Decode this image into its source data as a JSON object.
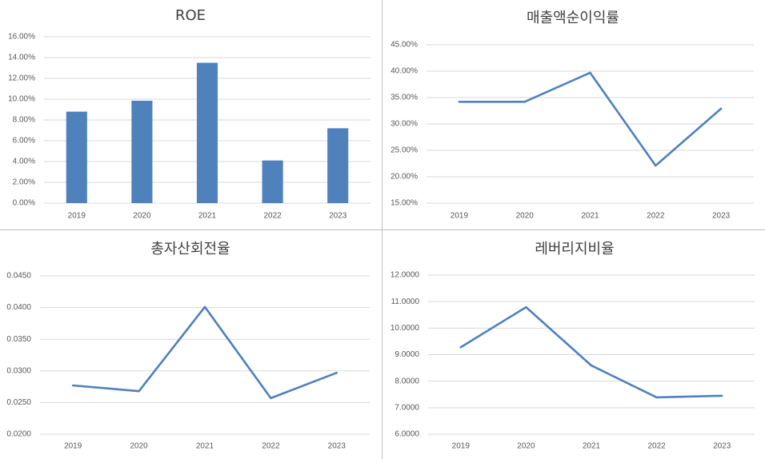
{
  "chart_data": [
    {
      "type": "bar",
      "title": "ROE",
      "categories": [
        "2019",
        "2020",
        "2021",
        "2022",
        "2023"
      ],
      "values": [
        8.8,
        9.85,
        13.5,
        4.1,
        7.2
      ],
      "color": "#4f81bd",
      "ylim": [
        0,
        16
      ],
      "yticks": [
        {
          "value": 0,
          "label": "0.00%"
        },
        {
          "value": 2,
          "label": "2.00%"
        },
        {
          "value": 4,
          "label": "4.00%"
        },
        {
          "value": 6,
          "label": "6.00%"
        },
        {
          "value": 8,
          "label": "8.00%"
        },
        {
          "value": 10,
          "label": "10.00%"
        },
        {
          "value": 12,
          "label": "12.00%"
        },
        {
          "value": 14,
          "label": "14.00%"
        },
        {
          "value": 16,
          "label": "16.00%"
        }
      ],
      "grid": true
    },
    {
      "type": "line",
      "title": "매출액순이익률",
      "categories": [
        "2019",
        "2020",
        "2021",
        "2022",
        "2023"
      ],
      "values": [
        34.2,
        34.2,
        39.7,
        22.1,
        32.9
      ],
      "color": "#4f81bd",
      "ylim": [
        15,
        45
      ],
      "yticks": [
        {
          "value": 15,
          "label": "15.00%"
        },
        {
          "value": 20,
          "label": "20.00%"
        },
        {
          "value": 25,
          "label": "25.00%"
        },
        {
          "value": 30,
          "label": "30.00%"
        },
        {
          "value": 35,
          "label": "35.00%"
        },
        {
          "value": 40,
          "label": "40.00%"
        },
        {
          "value": 45,
          "label": "45.00%"
        }
      ],
      "grid": true
    },
    {
      "type": "line",
      "title": "총자산회전율",
      "categories": [
        "2019",
        "2020",
        "2021",
        "2022",
        "2023"
      ],
      "values": [
        0.0277,
        0.0268,
        0.0401,
        0.0257,
        0.0297
      ],
      "color": "#4f81bd",
      "ylim": [
        0.02,
        0.045
      ],
      "yticks": [
        {
          "value": 0.02,
          "label": "0.0200"
        },
        {
          "value": 0.025,
          "label": "0.0250"
        },
        {
          "value": 0.03,
          "label": "0.0300"
        },
        {
          "value": 0.035,
          "label": "0.0350"
        },
        {
          "value": 0.04,
          "label": "0.0400"
        },
        {
          "value": 0.045,
          "label": "0.0450"
        }
      ],
      "grid": true
    },
    {
      "type": "line",
      "title": "레버리지비율",
      "categories": [
        "2019",
        "2020",
        "2021",
        "2022",
        "2023"
      ],
      "values": [
        9.28,
        10.79,
        8.59,
        7.39,
        7.45
      ],
      "color": "#4f81bd",
      "ylim": [
        6,
        12
      ],
      "yticks": [
        {
          "value": 6,
          "label": "6.0000"
        },
        {
          "value": 7,
          "label": "7.0000"
        },
        {
          "value": 8,
          "label": "8.0000"
        },
        {
          "value": 9,
          "label": "9.0000"
        },
        {
          "value": 10,
          "label": "10.0000"
        },
        {
          "value": 11,
          "label": "11.0000"
        },
        {
          "value": 12,
          "label": "12.0000"
        }
      ],
      "grid": true
    }
  ]
}
